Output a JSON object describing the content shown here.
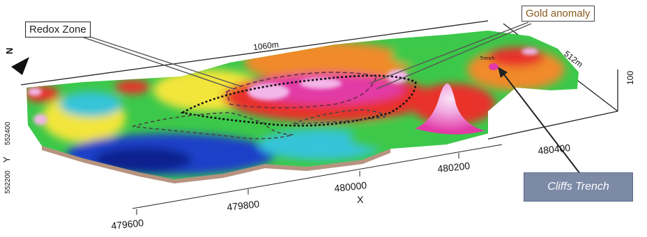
{
  "map": {
    "callouts": {
      "redox_zone": "Redox Zone",
      "gold_anomaly": "Gold anomaly",
      "cliffs_trench": "Cliffs Trench"
    },
    "trench_tag": "Trench",
    "dimensions": {
      "length": "1060m",
      "width": "512m",
      "height": "100"
    },
    "axes": {
      "x_title": "X",
      "y_title": "Y",
      "north": "N",
      "x_ticks": [
        "479600",
        "479800",
        "480000",
        "480200",
        "480400"
      ],
      "y_ticks": [
        "552400",
        "552200"
      ]
    },
    "colors": {
      "low": "#1a3fc8",
      "mid_low": "#35c4d8",
      "mid": "#3cc84a",
      "mid_high": "#f2e53a",
      "high": "#e8332a",
      "peak": "#e23aa6",
      "apex": "#f3b6e8",
      "callout_box": "#7c8aa6"
    }
  }
}
